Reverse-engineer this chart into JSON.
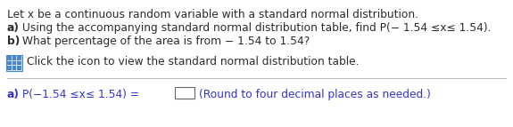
{
  "bg_color": "#ffffff",
  "text_color_black": "#2b2b2b",
  "text_color_blue": "#3333cc",
  "line1": "Let x be a continuous random variable with a standard normal distribution.",
  "line2_bold": "a)",
  "line2_rest": " Using the accompanying standard normal distribution table, find P(− 1.54 ≤x≤ 1.54).",
  "line3_bold": "b)",
  "line3_rest": " What percentage of the area is from − 1.54 to 1.54?",
  "icon_click_text": "Click the icon to view the standard normal distribution table.",
  "answer_bold": "a)",
  "answer_text": " P(−1.54 ≤x≤ 1.54) = ",
  "answer_hint": "(Round to four decimal places as needed.)",
  "font_size": 8.8,
  "icon_color": "#4a86c8",
  "icon_bg": "#d0e4f7",
  "separator_color": "#bbbbbb",
  "box_color": "#aaaaaa"
}
